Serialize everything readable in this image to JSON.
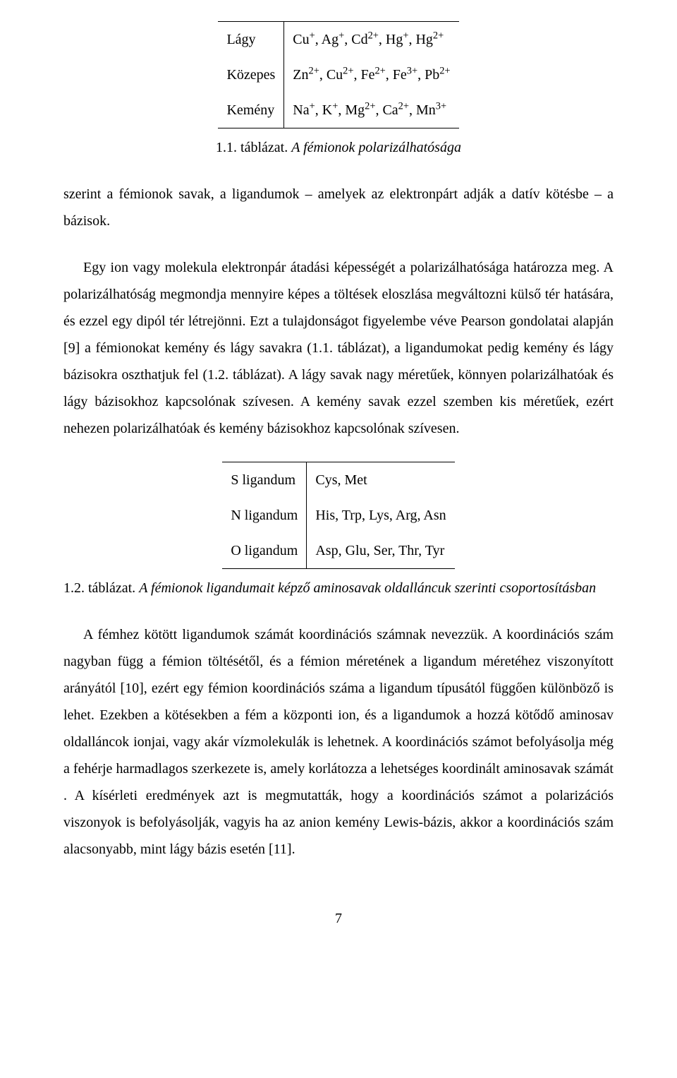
{
  "table1": {
    "rows": [
      {
        "label": "Lágy",
        "ions_html": "Cu<sup>+</sup>, Ag<sup>+</sup>, Cd<sup>2+</sup>, Hg<sup>+</sup>, Hg<sup>2+</sup>"
      },
      {
        "label": "Közepes",
        "ions_html": "Zn<sup>2+</sup>, Cu<sup>2+</sup>, Fe<sup>2+</sup>, Fe<sup>3+</sup>, Pb<sup>2+</sup>"
      },
      {
        "label": "Kemény",
        "ions_html": "Na<sup>+</sup>, K<sup>+</sup>, Mg<sup>2+</sup>, Ca<sup>2+</sup>, Mn<sup>3+</sup>"
      }
    ],
    "caption_number": "1.1. táblázat.",
    "caption_text": "A fémionok polarizálhatósága"
  },
  "para1": "szerint a fémionok savak, a ligandumok – amelyek az elektronpárt adják a datív kötésbe – a bázisok.",
  "para2": "Egy ion vagy molekula elektronpár átadási képességét a polarizálhatósága határozza meg. A polarizálhatóság megmondja mennyire képes a töltések eloszlása megváltozni külső tér hatására, és ezzel egy dipól tér létrejönni. Ezt a tulajdonságot figyelembe véve Pearson gondolatai alapján [9] a fémionokat kemény és lágy savakra (1.1. táblázat), a ligandumokat pedig kemény és lágy bázisokra oszthatjuk fel (1.2. táblázat). A lágy savak nagy méretűek, könnyen polarizálhatóak és lágy bázisokhoz kapcsolónak szívesen. A kemény savak ezzel szemben kis méretűek, ezért nehezen polarizálhatóak és kemény bázisokhoz kapcsolónak szívesen.",
  "table2": {
    "rows": [
      {
        "label": "S ligandum",
        "items": "Cys, Met"
      },
      {
        "label": "N ligandum",
        "items": "His, Trp, Lys, Arg, Asn"
      },
      {
        "label": "O ligandum",
        "items": "Asp, Glu, Ser, Thr, Tyr"
      }
    ],
    "caption_number": "1.2. táblázat.",
    "caption_text": "A fémionok ligandumait képző aminosavak oldalláncuk szerinti csoportosításban"
  },
  "para3": "A fémhez kötött ligandumok számát koordinációs számnak nevezzük. A koordinációs szám nagyban függ a fémion töltésétől, és a fémion méretének a ligandum méretéhez viszonyított arányától [10], ezért egy fémion koordinációs száma a ligandum típusától függően különböző is lehet. Ezekben a kötésekben a fém a központi ion, és a ligandumok a hozzá kötődő aminosav oldalláncok ionjai, vagy akár vízmolekulák is lehetnek. A koordinációs számot befolyásolja még a fehérje harmadlagos szerkezete is, amely korlátozza a lehetséges koordinált aminosavak számát . A kísérleti eredmények azt is megmutatták, hogy a koordinációs számot a polarizációs viszonyok is befolyásolják, vagyis ha az anion kemény Lewis-bázis, akkor a koordinációs szám alacsonyabb, mint lágy bázis esetén [11].",
  "page_number": "7"
}
